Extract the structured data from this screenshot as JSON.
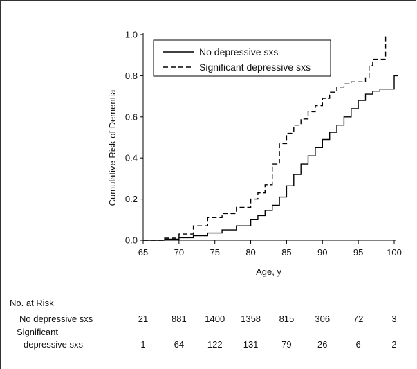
{
  "chart_data": {
    "type": "line",
    "xlabel": "Age, y",
    "ylabel": "Cumulative Risk of Dementia",
    "xlim": [
      65,
      100
    ],
    "ylim": [
      0,
      1.0
    ],
    "x_ticks": [
      "65",
      "70",
      "75",
      "80",
      "85",
      "90",
      "95",
      "100"
    ],
    "y_ticks": [
      "0.0",
      "0.2",
      "0.4",
      "0.6",
      "0.8",
      "1.0"
    ],
    "legend_position": "top-left inside",
    "series": [
      {
        "name": "No depressive sxs",
        "style": "solid",
        "color": "#000000",
        "points": [
          [
            65,
            0
          ],
          [
            68,
            0.005
          ],
          [
            70,
            0.012
          ],
          [
            72,
            0.022
          ],
          [
            74,
            0.035
          ],
          [
            76,
            0.05
          ],
          [
            78,
            0.07
          ],
          [
            80,
            0.1
          ],
          [
            81,
            0.12
          ],
          [
            82,
            0.145
          ],
          [
            83,
            0.17
          ],
          [
            84,
            0.21
          ],
          [
            85,
            0.265
          ],
          [
            86,
            0.32
          ],
          [
            87,
            0.37
          ],
          [
            88,
            0.41
          ],
          [
            89,
            0.45
          ],
          [
            90,
            0.49
          ],
          [
            91,
            0.525
          ],
          [
            92,
            0.56
          ],
          [
            93,
            0.6
          ],
          [
            94,
            0.64
          ],
          [
            95,
            0.68
          ],
          [
            96,
            0.71
          ],
          [
            97,
            0.725
          ],
          [
            98,
            0.735
          ],
          [
            99,
            0.735
          ],
          [
            100,
            0.735
          ],
          [
            100,
            0.8
          ],
          [
            100.5,
            0.8
          ]
        ]
      },
      {
        "name": "Significant depressive sxs",
        "style": "dashed",
        "color": "#000000",
        "points": [
          [
            65,
            0
          ],
          [
            68,
            0.01
          ],
          [
            70,
            0.03
          ],
          [
            72,
            0.07
          ],
          [
            74,
            0.11
          ],
          [
            76,
            0.13
          ],
          [
            78,
            0.16
          ],
          [
            80,
            0.2
          ],
          [
            81,
            0.23
          ],
          [
            82,
            0.27
          ],
          [
            83,
            0.37
          ],
          [
            84,
            0.47
          ],
          [
            85,
            0.52
          ],
          [
            86,
            0.56
          ],
          [
            87,
            0.59
          ],
          [
            88,
            0.625
          ],
          [
            89,
            0.655
          ],
          [
            90,
            0.69
          ],
          [
            91,
            0.72
          ],
          [
            92,
            0.745
          ],
          [
            93,
            0.76
          ],
          [
            94,
            0.77
          ],
          [
            95,
            0.77
          ],
          [
            96,
            0.79
          ],
          [
            96.5,
            0.85
          ],
          [
            97,
            0.88
          ],
          [
            98,
            0.88
          ],
          [
            98.8,
            0.88
          ],
          [
            98.8,
            1.0
          ]
        ]
      }
    ]
  },
  "risk_table": {
    "title": "No. at Risk",
    "rows": [
      {
        "label_lines": [
          "No depressive sxs"
        ],
        "values": [
          "21",
          "881",
          "1400",
          "1358",
          "815",
          "306",
          "72",
          "3"
        ]
      },
      {
        "label_lines": [
          "Significant",
          "depressive sxs"
        ],
        "values": [
          "1",
          "64",
          "122",
          "131",
          "79",
          "26",
          "6",
          "2"
        ]
      }
    ]
  }
}
